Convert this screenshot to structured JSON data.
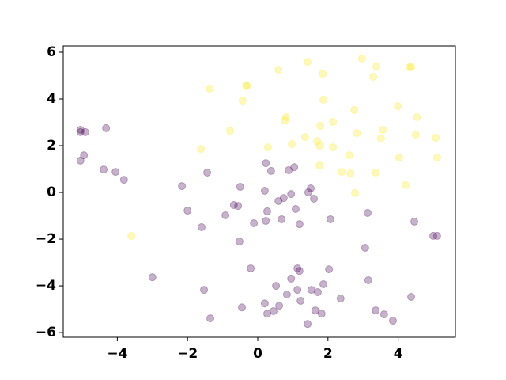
{
  "chart_data": {
    "type": "scatter",
    "xlim": [
      -5.54,
      5.63
    ],
    "ylim": [
      -6.2,
      6.27
    ],
    "xticks": [
      {
        "value": -4,
        "label": "−4"
      },
      {
        "value": -2,
        "label": "−2"
      },
      0,
      2,
      4
    ],
    "yticks": [
      {
        "value": -6,
        "label": "−6"
      },
      {
        "value": -4,
        "label": "−4"
      },
      {
        "value": -2,
        "label": "−2"
      },
      0,
      2,
      4,
      6
    ],
    "alpha": 0.3,
    "series": [
      {
        "color": "#fde725",
        "x": [
          2.97,
          1.42,
          3.38,
          4.32,
          4.37,
          0.59,
          1.85,
          3.29,
          -0.33,
          -0.31,
          -1.37,
          -0.43,
          1.87,
          3.99,
          2.75,
          0.81,
          0.77,
          4.53,
          2.14,
          1.78,
          -0.79,
          3.56,
          2.82,
          1.35,
          4.5,
          3.51,
          5.07,
          1.69,
          0.97,
          1.76,
          0.29,
          2.14,
          -1.62,
          2.61,
          4.03,
          5.11,
          1.76,
          2.39,
          2.64,
          3.36,
          4.21,
          2.77,
          -3.6
        ],
        "y": [
          5.73,
          5.59,
          5.39,
          5.36,
          5.36,
          5.25,
          5.08,
          4.95,
          4.58,
          4.55,
          4.44,
          3.93,
          3.97,
          3.69,
          3.53,
          3.22,
          3.08,
          3.22,
          3.02,
          2.85,
          2.64,
          2.68,
          2.54,
          2.37,
          2.47,
          2.31,
          2.34,
          2.2,
          2.07,
          2.0,
          1.93,
          1.93,
          1.86,
          1.59,
          1.49,
          1.49,
          1.15,
          0.88,
          0.81,
          0.85,
          0.31,
          -0.03,
          -1.86
        ]
      },
      {
        "color": "#440154",
        "x": [
          -5.05,
          -5.05,
          -4.91,
          -4.32,
          -4.95,
          -5.05,
          -4.39,
          -4.05,
          -3.81,
          0.23,
          0.38,
          0.88,
          1.04,
          -1.44,
          -2.16,
          -0.5,
          0.2,
          1.51,
          1.44,
          0.95,
          0.74,
          1.6,
          0.59,
          -0.68,
          -0.56,
          -2.0,
          1.08,
          0.27,
          -0.92,
          3.13,
          0.68,
          2.07,
          -0.11,
          0.23,
          1.19,
          4.46,
          -1.6,
          5.0,
          5.11,
          -0.52,
          3.06,
          -0.2,
          1.13,
          1.19,
          2.03,
          -3.0,
          0.95,
          3.15,
          0.52,
          -1.53,
          1.13,
          1.87,
          1.53,
          1.71,
          0.83,
          2.36,
          4.37,
          1.22,
          0.2,
          0.61,
          -0.45,
          3.36,
          1.64,
          0.45,
          0.27,
          1.82,
          3.6,
          -1.35,
          3.85,
          1.42
        ],
        "y": [
          2.68,
          2.58,
          2.58,
          2.75,
          1.59,
          1.36,
          0.98,
          0.88,
          0.54,
          1.25,
          0.92,
          0.95,
          1.08,
          0.85,
          0.27,
          0.24,
          0.07,
          0.17,
          0.0,
          -0.07,
          -0.24,
          -0.27,
          -0.37,
          -0.54,
          -0.58,
          -0.78,
          -0.71,
          -0.81,
          -0.98,
          -0.88,
          -1.15,
          -1.15,
          -1.32,
          -1.22,
          -1.36,
          -1.25,
          -1.49,
          -1.86,
          -1.86,
          -2.1,
          -2.37,
          -3.25,
          -3.25,
          -3.36,
          -3.29,
          -3.63,
          -3.69,
          -3.76,
          -4.0,
          -4.17,
          -4.17,
          -3.93,
          -4.17,
          -4.27,
          -4.37,
          -4.54,
          -4.47,
          -4.64,
          -4.75,
          -4.85,
          -4.92,
          -5.05,
          -5.05,
          -5.08,
          -5.19,
          -5.19,
          -5.22,
          -5.39,
          -5.49,
          -5.63
        ]
      }
    ]
  }
}
